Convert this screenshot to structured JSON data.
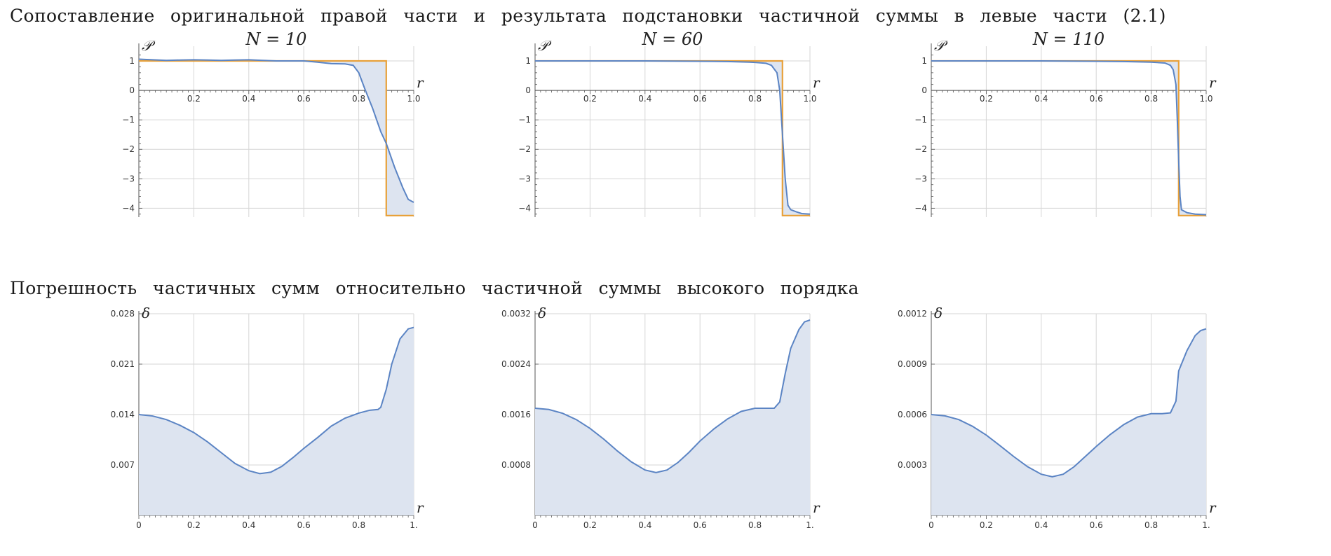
{
  "headings": {
    "top": "Сопоставление оригинальной правой части и результата подстановки частичной суммы в левые части (2.1)",
    "bottom": "Погрешность частичных сумм относительно частичной суммы высокого порядка"
  },
  "colors": {
    "series": "#5b84c4",
    "fill": "#dde4f0",
    "target": "#e8a13a",
    "grid": "#d6d6d6",
    "axis": "#555555"
  },
  "chart_data": [
    {
      "type": "line",
      "title": "N = 10",
      "xlabel": "r",
      "ylabel": "𝒫",
      "xlim": [
        0,
        1
      ],
      "ylim": [
        -4.3,
        1.5
      ],
      "grid": true,
      "xticks": [
        0.2,
        0.4,
        0.6,
        0.8,
        1.0
      ],
      "xtick_labels": [
        "0.2",
        "0.4",
        "0.6",
        "0.8",
        "1.0"
      ],
      "yticks": [
        1,
        0,
        -1,
        -2,
        -3,
        -4
      ],
      "ytick_labels": [
        "1",
        "0",
        "−1",
        "−2",
        "−3",
        "−4"
      ],
      "series": [
        {
          "values": [
            [
              0,
              1.06
            ],
            [
              0.05,
              1.04
            ],
            [
              0.1,
              1.02
            ],
            [
              0.15,
              1.03
            ],
            [
              0.2,
              1.04
            ],
            [
              0.25,
              1.03
            ],
            [
              0.3,
              1.02
            ],
            [
              0.35,
              1.03
            ],
            [
              0.4,
              1.04
            ],
            [
              0.45,
              1.02
            ],
            [
              0.5,
              1.0
            ],
            [
              0.55,
              1.0
            ],
            [
              0.6,
              1.0
            ],
            [
              0.65,
              0.96
            ],
            [
              0.7,
              0.91
            ],
            [
              0.75,
              0.9
            ],
            [
              0.78,
              0.85
            ],
            [
              0.8,
              0.6
            ],
            [
              0.82,
              0.1
            ],
            [
              0.85,
              -0.6
            ],
            [
              0.88,
              -1.4
            ],
            [
              0.9,
              -1.8
            ],
            [
              0.93,
              -2.6
            ],
            [
              0.96,
              -3.3
            ],
            [
              0.98,
              -3.7
            ],
            [
              1.0,
              -3.8
            ]
          ]
        },
        {
          "values": [
            [
              0,
              1
            ],
            [
              0.9,
              1
            ],
            [
              0.9,
              -4.25
            ],
            [
              1.0,
              -4.25
            ]
          ]
        }
      ]
    },
    {
      "type": "line",
      "title": "N = 60",
      "xlabel": "r",
      "ylabel": "𝒫",
      "xlim": [
        0,
        1
      ],
      "ylim": [
        -4.3,
        1.5
      ],
      "grid": true,
      "xticks": [
        0.2,
        0.4,
        0.6,
        0.8,
        1.0
      ],
      "xtick_labels": [
        "0.2",
        "0.4",
        "0.6",
        "0.8",
        "1.0"
      ],
      "yticks": [
        1,
        0,
        -1,
        -2,
        -3,
        -4
      ],
      "ytick_labels": [
        "1",
        "0",
        "−1",
        "−2",
        "−3",
        "−4"
      ],
      "series": [
        {
          "values": [
            [
              0,
              1.0
            ],
            [
              0.2,
              1.0
            ],
            [
              0.4,
              1.0
            ],
            [
              0.6,
              0.99
            ],
            [
              0.7,
              0.98
            ],
            [
              0.78,
              0.96
            ],
            [
              0.8,
              0.95
            ],
            [
              0.84,
              0.92
            ],
            [
              0.86,
              0.85
            ],
            [
              0.88,
              0.6
            ],
            [
              0.89,
              0.0
            ],
            [
              0.9,
              -1.5
            ],
            [
              0.91,
              -3.0
            ],
            [
              0.92,
              -3.9
            ],
            [
              0.93,
              -4.05
            ],
            [
              0.95,
              -4.12
            ],
            [
              0.97,
              -4.18
            ],
            [
              1.0,
              -4.2
            ]
          ]
        },
        {
          "values": [
            [
              0,
              1
            ],
            [
              0.9,
              1
            ],
            [
              0.9,
              -4.25
            ],
            [
              1.0,
              -4.25
            ]
          ]
        }
      ]
    },
    {
      "type": "line",
      "title": "N = 110",
      "xlabel": "r",
      "ylabel": "𝒫",
      "xlim": [
        0,
        1
      ],
      "ylim": [
        -4.3,
        1.5
      ],
      "grid": true,
      "xticks": [
        0.2,
        0.4,
        0.6,
        0.8,
        1.0
      ],
      "xtick_labels": [
        "0.2",
        "0.4",
        "0.6",
        "0.8",
        "1.0"
      ],
      "yticks": [
        1,
        0,
        -1,
        -2,
        -3,
        -4
      ],
      "ytick_labels": [
        "1",
        "0",
        "−1",
        "−2",
        "−3",
        "−4"
      ],
      "series": [
        {
          "values": [
            [
              0,
              1.0
            ],
            [
              0.2,
              1.0
            ],
            [
              0.4,
              1.0
            ],
            [
              0.6,
              0.99
            ],
            [
              0.7,
              0.98
            ],
            [
              0.8,
              0.96
            ],
            [
              0.85,
              0.93
            ],
            [
              0.87,
              0.85
            ],
            [
              0.88,
              0.7
            ],
            [
              0.89,
              0.2
            ],
            [
              0.895,
              -1.0
            ],
            [
              0.9,
              -2.4
            ],
            [
              0.905,
              -3.6
            ],
            [
              0.91,
              -4.05
            ],
            [
              0.93,
              -4.15
            ],
            [
              0.96,
              -4.2
            ],
            [
              1.0,
              -4.22
            ]
          ]
        },
        {
          "values": [
            [
              0,
              1
            ],
            [
              0.9,
              1
            ],
            [
              0.9,
              -4.25
            ],
            [
              1.0,
              -4.25
            ]
          ]
        }
      ]
    },
    {
      "type": "area",
      "xlabel": "r",
      "ylabel": "δ",
      "xlim": [
        0,
        1
      ],
      "ylim": [
        0,
        0.028
      ],
      "grid": true,
      "xticks": [
        0,
        0.2,
        0.4,
        0.6,
        0.8,
        1.0
      ],
      "xtick_labels": [
        "0",
        "0.2",
        "0.4",
        "0.6",
        "0.8",
        "1."
      ],
      "yticks": [
        0.007,
        0.014,
        0.021,
        0.028
      ],
      "ytick_labels": [
        "0.007",
        "0.014",
        "0.021",
        "0.028"
      ],
      "series": [
        {
          "values": [
            [
              0,
              0.014
            ],
            [
              0.05,
              0.0138
            ],
            [
              0.1,
              0.0133
            ],
            [
              0.15,
              0.0125
            ],
            [
              0.2,
              0.0115
            ],
            [
              0.25,
              0.0102
            ],
            [
              0.3,
              0.0087
            ],
            [
              0.35,
              0.0072
            ],
            [
              0.4,
              0.0062
            ],
            [
              0.44,
              0.0058
            ],
            [
              0.48,
              0.006
            ],
            [
              0.52,
              0.0068
            ],
            [
              0.56,
              0.008
            ],
            [
              0.6,
              0.0093
            ],
            [
              0.65,
              0.0108
            ],
            [
              0.7,
              0.0124
            ],
            [
              0.75,
              0.0135
            ],
            [
              0.8,
              0.0142
            ],
            [
              0.84,
              0.0146
            ],
            [
              0.87,
              0.0147
            ],
            [
              0.88,
              0.015
            ],
            [
              0.9,
              0.0175
            ],
            [
              0.92,
              0.021
            ],
            [
              0.95,
              0.0245
            ],
            [
              0.98,
              0.0259
            ],
            [
              1.0,
              0.0261
            ]
          ]
        }
      ]
    },
    {
      "type": "area",
      "xlabel": "r",
      "ylabel": "δ",
      "xlim": [
        0,
        1
      ],
      "ylim": [
        0,
        0.0032
      ],
      "grid": true,
      "xticks": [
        0,
        0.2,
        0.4,
        0.6,
        0.8,
        1.0
      ],
      "xtick_labels": [
        "0",
        "0.2",
        "0.4",
        "0.6",
        "0.8",
        "1."
      ],
      "yticks": [
        0.0008,
        0.0016,
        0.0024,
        0.0032
      ],
      "ytick_labels": [
        "0.0008",
        "0.0016",
        "0.0024",
        "0.0032"
      ],
      "series": [
        {
          "values": [
            [
              0,
              0.0017
            ],
            [
              0.05,
              0.00168
            ],
            [
              0.1,
              0.00162
            ],
            [
              0.15,
              0.00152
            ],
            [
              0.2,
              0.00138
            ],
            [
              0.25,
              0.00121
            ],
            [
              0.3,
              0.00102
            ],
            [
              0.35,
              0.00085
            ],
            [
              0.4,
              0.00072
            ],
            [
              0.44,
              0.00068
            ],
            [
              0.48,
              0.00072
            ],
            [
              0.52,
              0.00084
            ],
            [
              0.56,
              0.001
            ],
            [
              0.6,
              0.00118
            ],
            [
              0.65,
              0.00137
            ],
            [
              0.7,
              0.00153
            ],
            [
              0.75,
              0.00165
            ],
            [
              0.8,
              0.0017
            ],
            [
              0.84,
              0.0017
            ],
            [
              0.87,
              0.0017
            ],
            [
              0.89,
              0.0018
            ],
            [
              0.91,
              0.00225
            ],
            [
              0.93,
              0.00265
            ],
            [
              0.96,
              0.00295
            ],
            [
              0.98,
              0.00307
            ],
            [
              1.0,
              0.0031
            ]
          ]
        }
      ]
    },
    {
      "type": "area",
      "xlabel": "r",
      "ylabel": "δ",
      "xlim": [
        0,
        1
      ],
      "ylim": [
        0,
        0.0012
      ],
      "grid": true,
      "xticks": [
        0,
        0.2,
        0.4,
        0.6,
        0.8,
        1.0
      ],
      "xtick_labels": [
        "0",
        "0.2",
        "0.4",
        "0.6",
        "0.8",
        "1."
      ],
      "yticks": [
        0.0003,
        0.0006,
        0.0009,
        0.0012
      ],
      "ytick_labels": [
        "0.0003",
        "0.0006",
        "0.0009",
        "0.0012"
      ],
      "series": [
        {
          "values": [
            [
              0,
              0.0006
            ],
            [
              0.05,
              0.000592
            ],
            [
              0.1,
              0.00057
            ],
            [
              0.15,
              0.00053
            ],
            [
              0.2,
              0.000478
            ],
            [
              0.25,
              0.000415
            ],
            [
              0.3,
              0.00035
            ],
            [
              0.35,
              0.00029
            ],
            [
              0.4,
              0.000245
            ],
            [
              0.44,
              0.00023
            ],
            [
              0.48,
              0.000245
            ],
            [
              0.52,
              0.00029
            ],
            [
              0.56,
              0.00035
            ],
            [
              0.6,
              0.00041
            ],
            [
              0.65,
              0.00048
            ],
            [
              0.7,
              0.00054
            ],
            [
              0.75,
              0.000585
            ],
            [
              0.8,
              0.000605
            ],
            [
              0.84,
              0.000605
            ],
            [
              0.87,
              0.00061
            ],
            [
              0.89,
              0.00068
            ],
            [
              0.9,
              0.00086
            ],
            [
              0.93,
              0.00098
            ],
            [
              0.96,
              0.00107
            ],
            [
              0.98,
              0.0011
            ],
            [
              1.0,
              0.00111
            ]
          ]
        }
      ]
    }
  ]
}
